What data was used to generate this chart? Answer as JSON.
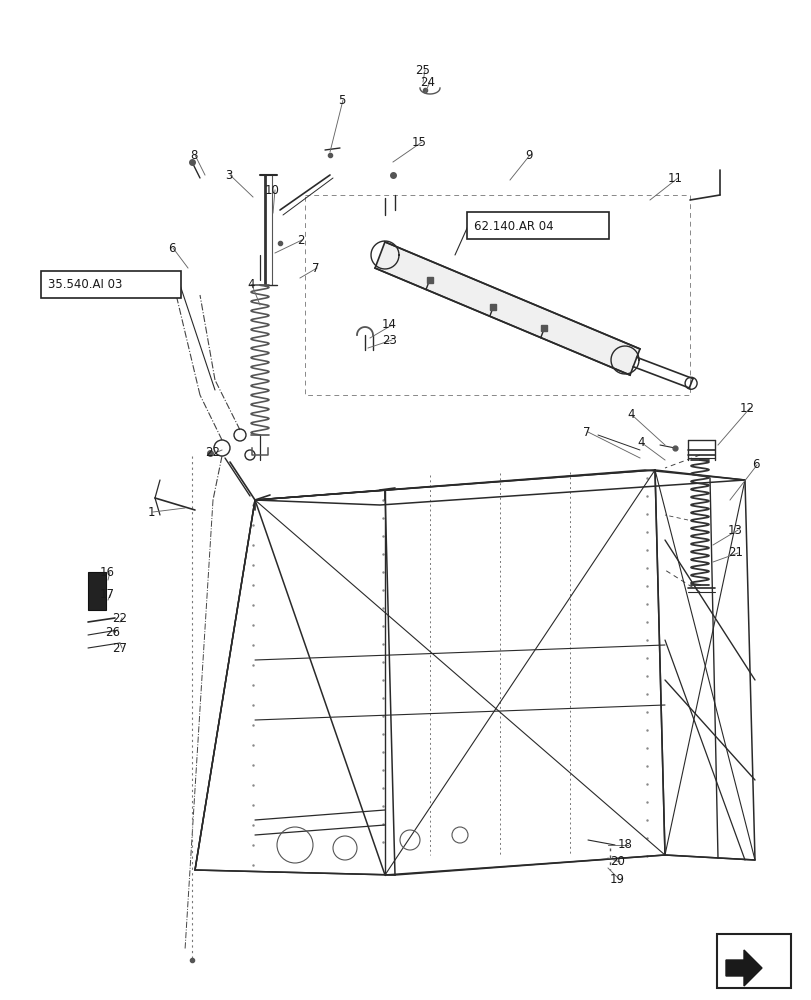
{
  "bg_color": "#ffffff",
  "line_color": "#2a2a2a",
  "label_color": "#1a1a1a",
  "box_label_1": "35.540.AI 03",
  "box_label_2": "62.140.AR 04",
  "figsize": [
    8.12,
    10.0
  ],
  "dpi": 100
}
